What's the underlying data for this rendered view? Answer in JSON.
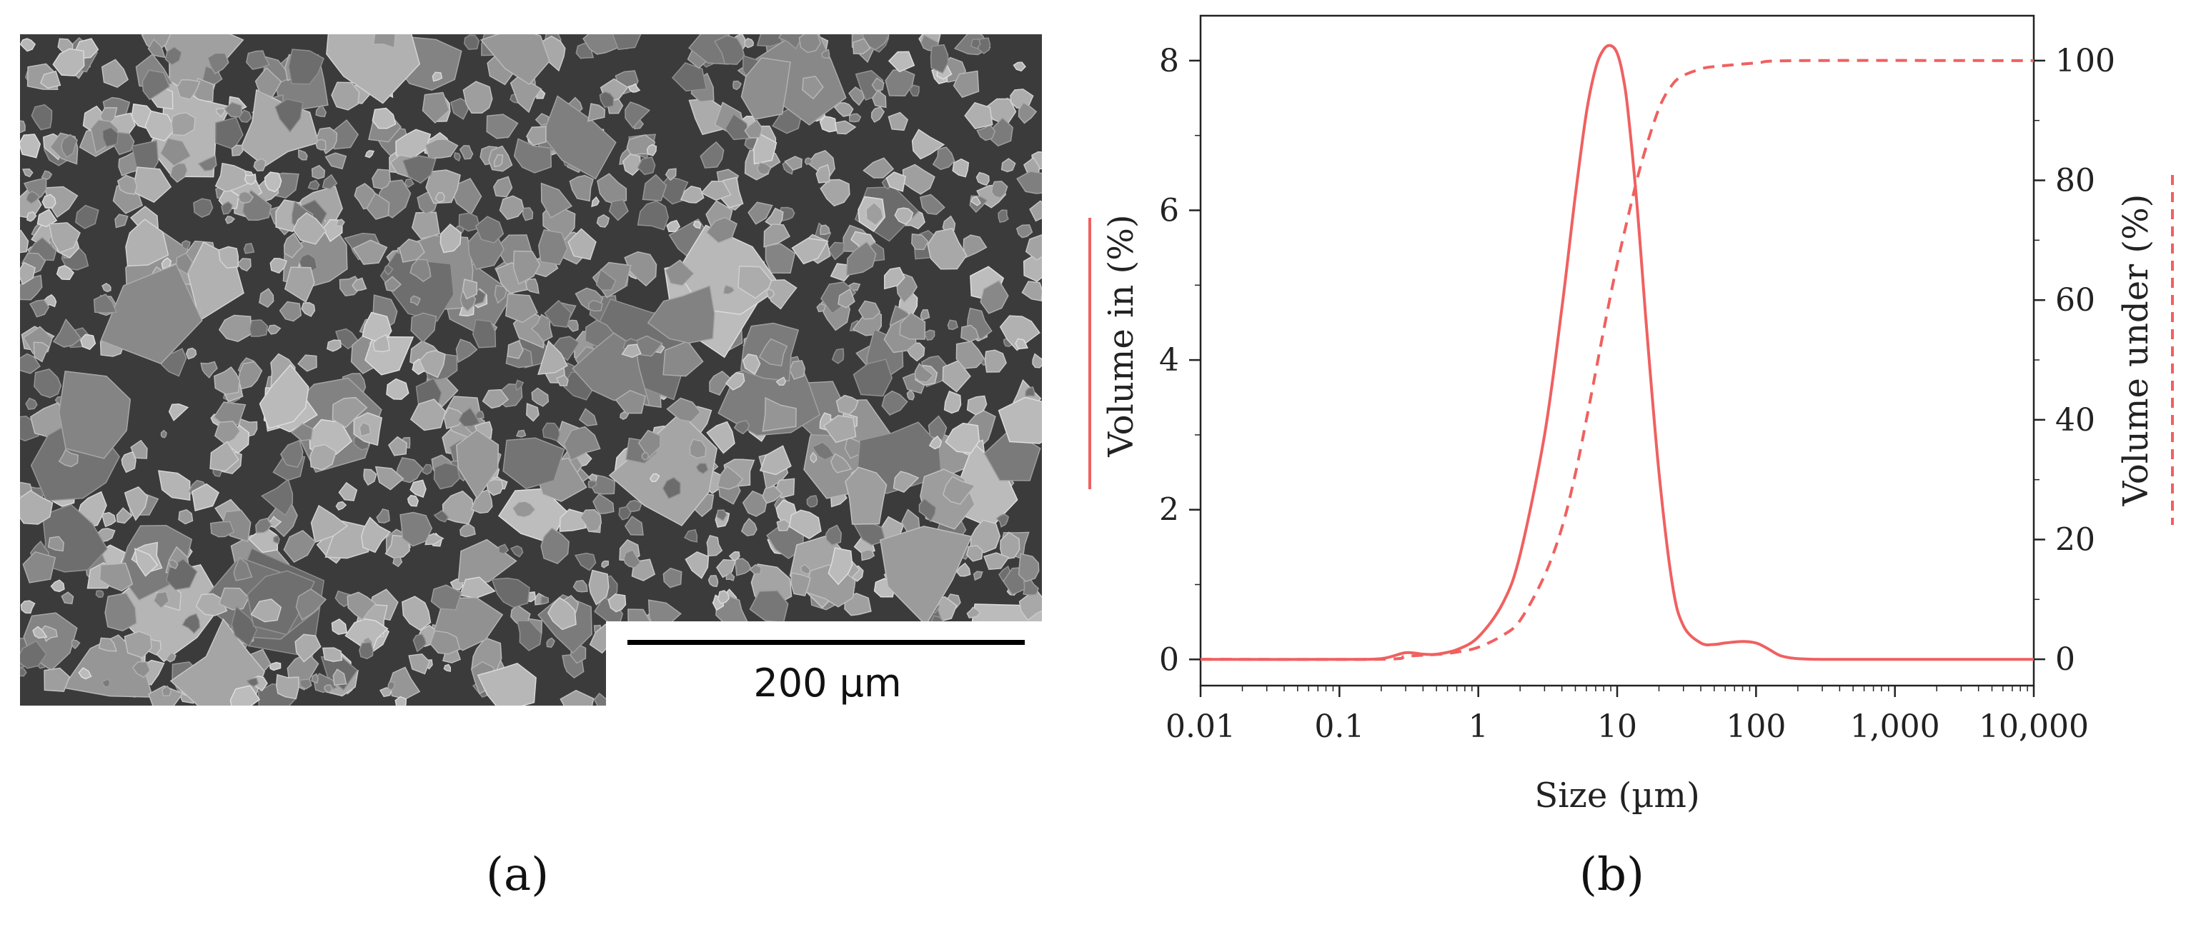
{
  "panels": {
    "a": {
      "label": "(a)",
      "scale_bar_text": "200 µm"
    },
    "b": {
      "label": "(b)"
    }
  },
  "colors": {
    "curve": "#f06060",
    "sem_background": "#3b3b3b"
  },
  "chart_data": {
    "type": "line",
    "x_scale": "log",
    "xlabel": "Size (µm)",
    "ylabel_left": "Volume in (%)",
    "ylabel_right": "Volume under (%)",
    "xlim": [
      0.01,
      10000
    ],
    "ylim_left": [
      -0.35,
      8.6
    ],
    "ylim_right": [
      -4.4,
      107.5
    ],
    "x_ticks": [
      0.01,
      0.1,
      1,
      10,
      100,
      1000,
      10000
    ],
    "x_tick_labels": [
      "0.01",
      "0.1",
      "1",
      "10",
      "100",
      "1,000",
      "10,000"
    ],
    "y_left_ticks": [
      0,
      2,
      4,
      6,
      8
    ],
    "y_right_ticks": [
      0,
      20,
      40,
      60,
      80,
      100
    ],
    "grid": false,
    "series": [
      {
        "axis": "left",
        "style": "solid",
        "x": [
          0.01,
          0.1,
          0.2,
          0.3,
          0.4,
          0.5,
          0.7,
          1,
          1.5,
          2,
          3,
          4,
          5,
          6,
          7,
          8,
          9,
          10,
          11,
          12,
          14,
          16,
          20,
          25,
          30,
          40,
          50,
          60,
          80,
          100,
          120,
          150,
          200,
          300,
          1000,
          10000
        ],
        "y": [
          0,
          0,
          0.01,
          0.09,
          0.07,
          0.07,
          0.13,
          0.3,
          0.75,
          1.4,
          3.0,
          4.7,
          6.2,
          7.3,
          7.9,
          8.15,
          8.2,
          8.1,
          7.8,
          7.3,
          6.0,
          4.6,
          2.5,
          1.0,
          0.45,
          0.22,
          0.2,
          0.22,
          0.24,
          0.22,
          0.15,
          0.05,
          0.01,
          0,
          0,
          0
        ]
      },
      {
        "axis": "right",
        "style": "dashed",
        "x": [
          0.01,
          0.2,
          0.3,
          0.5,
          0.7,
          1,
          1.5,
          2,
          3,
          4,
          5,
          6,
          7,
          8,
          9,
          10,
          12,
          15,
          20,
          25,
          30,
          40,
          50,
          100,
          200,
          10000
        ],
        "y": [
          0,
          0,
          0.5,
          0.8,
          1.2,
          2.0,
          4.0,
          6.5,
          14,
          22,
          31,
          40,
          48,
          55,
          61,
          66,
          74,
          83,
          92,
          96,
          97.5,
          98.6,
          99.0,
          99.6,
          100,
          100
        ]
      }
    ]
  }
}
